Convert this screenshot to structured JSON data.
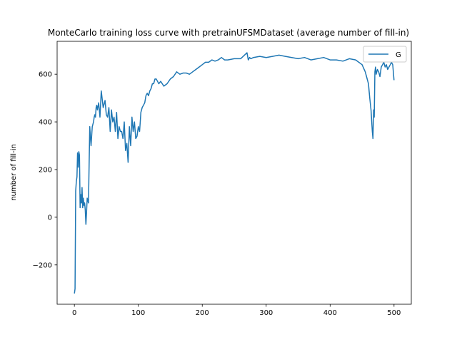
{
  "chart_data": {
    "type": "line",
    "title": "MonteCarlo training loss curve with pretrainUFSMDataset (average number of fill-in)",
    "xlabel": "",
    "ylabel": "number of fill-in",
    "xlim": [
      -27,
      527
    ],
    "ylim": [
      -365,
      738
    ],
    "xticks": [
      0,
      100,
      200,
      300,
      400,
      500
    ],
    "yticks": [
      -200,
      0,
      200,
      400,
      600
    ],
    "ytick_labels": [
      "−200",
      "0",
      "200",
      "400",
      "600"
    ],
    "legend": "upper right",
    "grid": false,
    "series": [
      {
        "name": "G",
        "color": "#1f77b4",
        "x": [
          0,
          1,
          2,
          3,
          4,
          5,
          6,
          7,
          8,
          9,
          10,
          11,
          12,
          13,
          14,
          15,
          16,
          17,
          18,
          19,
          20,
          22,
          24,
          26,
          28,
          30,
          31,
          32,
          33,
          34,
          35,
          36,
          38,
          40,
          42,
          45,
          48,
          50,
          52,
          54,
          56,
          58,
          60,
          62,
          64,
          66,
          68,
          70,
          72,
          74,
          76,
          78,
          80,
          82,
          84,
          86,
          88,
          90,
          92,
          94,
          96,
          98,
          100,
          102,
          104,
          106,
          108,
          110,
          112,
          114,
          116,
          118,
          120,
          122,
          124,
          126,
          128,
          130,
          132,
          135,
          140,
          145,
          150,
          155,
          160,
          165,
          170,
          175,
          180,
          185,
          190,
          195,
          200,
          205,
          210,
          215,
          220,
          225,
          230,
          235,
          240,
          250,
          260,
          270,
          272,
          274,
          276,
          280,
          290,
          300,
          310,
          320,
          330,
          340,
          350,
          360,
          370,
          380,
          390,
          400,
          410,
          420,
          430,
          440,
          450,
          455,
          460,
          462,
          464,
          466,
          467,
          468,
          469,
          470,
          471,
          472,
          474,
          476,
          478,
          480,
          482,
          484,
          486,
          488,
          490,
          492,
          494,
          496,
          498,
          500
        ],
        "y": [
          -320,
          -300,
          110,
          150,
          170,
          270,
          210,
          275,
          260,
          40,
          95,
          60,
          125,
          40,
          80,
          50,
          60,
          30,
          -30,
          20,
          80,
          60,
          380,
          300,
          380,
          400,
          420,
          430,
          420,
          460,
          470,
          450,
          480,
          420,
          530,
          460,
          490,
          430,
          420,
          460,
          360,
          450,
          400,
          420,
          360,
          440,
          330,
          380,
          360,
          360,
          330,
          400,
          280,
          310,
          230,
          380,
          300,
          420,
          360,
          400,
          330,
          340,
          380,
          360,
          440,
          460,
          470,
          480,
          510,
          520,
          510,
          530,
          540,
          560,
          560,
          580,
          580,
          570,
          560,
          570,
          550,
          560,
          580,
          590,
          610,
          600,
          605,
          605,
          600,
          610,
          620,
          630,
          640,
          650,
          650,
          660,
          655,
          660,
          670,
          660,
          660,
          665,
          665,
          690,
          660,
          670,
          665,
          670,
          675,
          670,
          675,
          680,
          675,
          670,
          665,
          670,
          660,
          665,
          670,
          660,
          660,
          655,
          665,
          660,
          640,
          610,
          560,
          500,
          450,
          360,
          330,
          450,
          420,
          610,
          630,
          600,
          620,
          610,
          590,
          630,
          640,
          650,
          630,
          640,
          620,
          630,
          640,
          650,
          640,
          575
        ]
      }
    ]
  }
}
